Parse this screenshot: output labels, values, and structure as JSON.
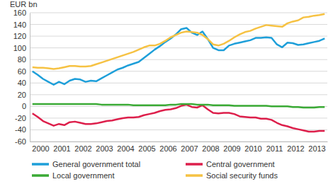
{
  "chart_data": {
    "type": "line",
    "y_label": "EUR bn",
    "categories": [
      null,
      "2000",
      null,
      null,
      null,
      "2001",
      null,
      null,
      null,
      "2002",
      null,
      null,
      null,
      "2003",
      null,
      null,
      null,
      "2004",
      null,
      null,
      null,
      "2005",
      null,
      null,
      null,
      "2006",
      null,
      null,
      null,
      "2007",
      null,
      null,
      null,
      "2008",
      null,
      null,
      null,
      "2009",
      null,
      null,
      null,
      "2010",
      null,
      null,
      null,
      "2011",
      null,
      null,
      null,
      "2012",
      null,
      null,
      null,
      "2013",
      null,
      null
    ],
    "series": [
      {
        "name": "General government total",
        "color": "#1e9fd9",
        "values": [
          60,
          54,
          47,
          42,
          37,
          42,
          38,
          44,
          47,
          46,
          42,
          44,
          43,
          48,
          53,
          58,
          63,
          66,
          70,
          73,
          76,
          83,
          90,
          97,
          103,
          110,
          116,
          123,
          132,
          134,
          126,
          122,
          128,
          115,
          100,
          96,
          96,
          104,
          107,
          109,
          111,
          113,
          117,
          117,
          118,
          117,
          106,
          101,
          109,
          108,
          105,
          106,
          108,
          110,
          112,
          116
        ]
      },
      {
        "name": "Central government",
        "color": "#dd1f4b",
        "values": [
          -12,
          -18,
          -25,
          -29,
          -33,
          -30,
          -32,
          -27,
          -26,
          -28,
          -30,
          -30,
          -29,
          -27,
          -25,
          -24,
          -22,
          -20,
          -19,
          -19,
          -18,
          -15,
          -13,
          -11,
          -8,
          -6,
          -5,
          -3,
          1,
          3,
          -1,
          -2,
          2,
          -5,
          -11,
          -12,
          -11,
          -11,
          -13,
          -17,
          -18,
          -19,
          -19,
          -21,
          -21,
          -23,
          -28,
          -32,
          -34,
          -37,
          -39,
          -41,
          -43,
          -43,
          -42,
          -42
        ]
      },
      {
        "name": "Local government",
        "color": "#3aaa35",
        "values": [
          4,
          4,
          4,
          4,
          4,
          4,
          4,
          4,
          4,
          4,
          4,
          4,
          4,
          3,
          3,
          3,
          3,
          3,
          3,
          2,
          2,
          2,
          2,
          2,
          2,
          2,
          3,
          3,
          4,
          4,
          4,
          3,
          3,
          3,
          2,
          2,
          2,
          2,
          1,
          1,
          1,
          1,
          1,
          1,
          1,
          0,
          0,
          0,
          0,
          -1,
          -1,
          -2,
          -2,
          -2,
          -1,
          -1
        ]
      },
      {
        "name": "Social security funds",
        "color": "#f6c243",
        "values": [
          67,
          66,
          66,
          65,
          64,
          65,
          67,
          69,
          69,
          68,
          68,
          69,
          72,
          75,
          78,
          81,
          84,
          87,
          90,
          93,
          97,
          101,
          104,
          104,
          107,
          112,
          118,
          122,
          126,
          128,
          127,
          126,
          122,
          115,
          106,
          104,
          107,
          112,
          118,
          123,
          127,
          129,
          133,
          136,
          139,
          138,
          137,
          136,
          142,
          145,
          147,
          152,
          153,
          155,
          156,
          158
        ]
      }
    ],
    "ylim": [
      -60,
      160
    ],
    "yticks": [
      -60,
      -40,
      -20,
      0,
      20,
      40,
      60,
      80,
      100,
      120,
      140,
      160
    ],
    "grid": true,
    "legend": "bottom"
  }
}
